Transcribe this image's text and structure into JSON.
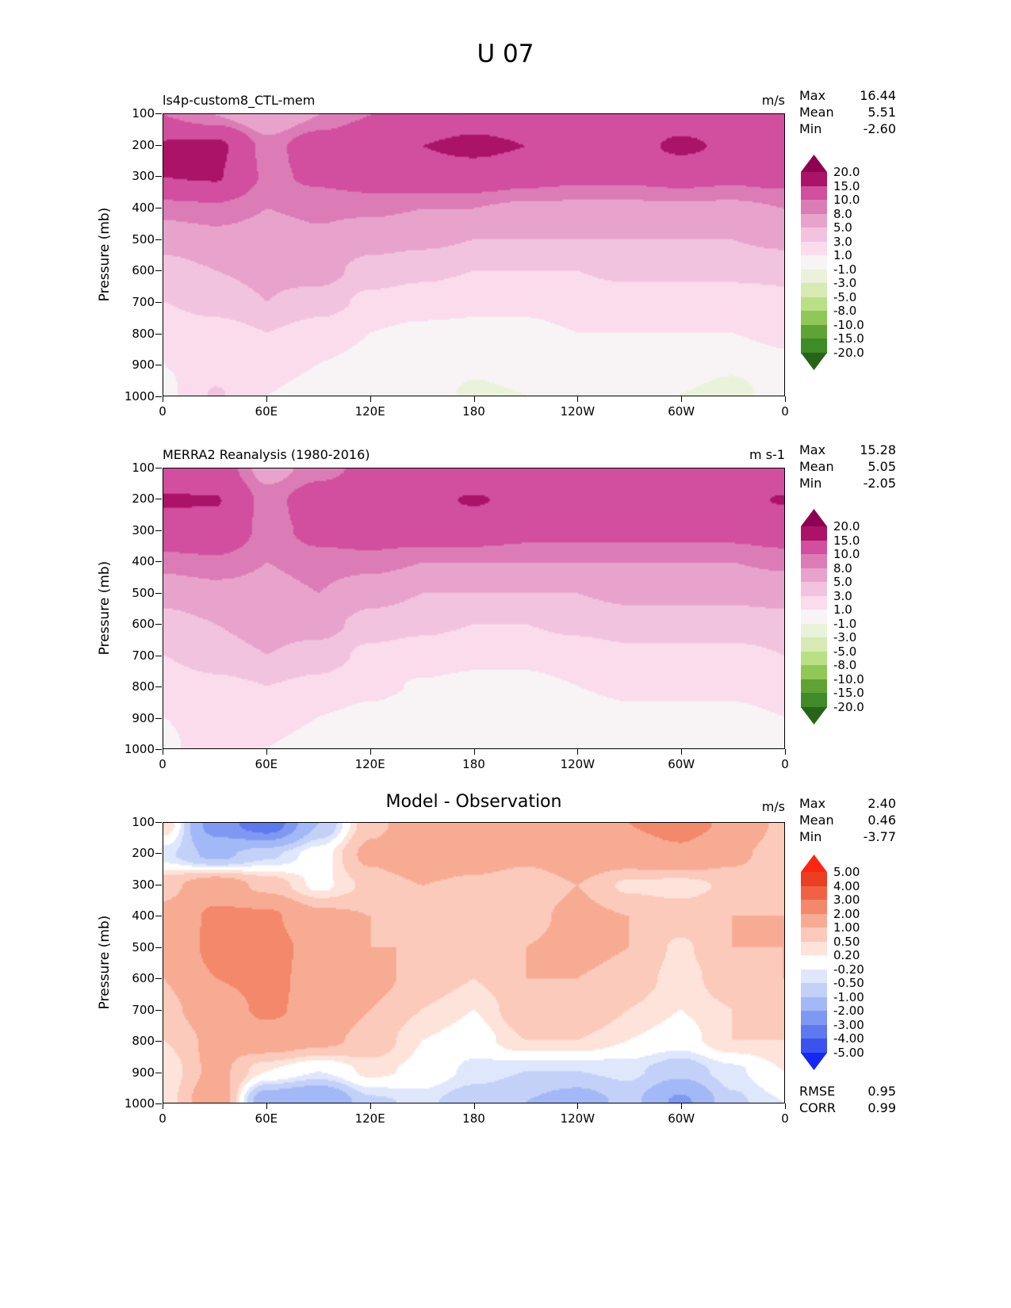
{
  "figure": {
    "title": "U 07"
  },
  "axes": {
    "ylabel": "Pressure (mb)",
    "yticks": [
      "100",
      "200",
      "300",
      "400",
      "500",
      "600",
      "700",
      "800",
      "900",
      "1000"
    ],
    "xticks": [
      "0",
      "60E",
      "120E",
      "180",
      "120W",
      "60W",
      "0"
    ]
  },
  "panels": [
    {
      "title": "ls4p-custom8_CTL-mem",
      "units": "m/s",
      "stats": [
        {
          "label": "Max",
          "value": "16.44"
        },
        {
          "label": "Mean",
          "value": "5.51"
        },
        {
          "label": "Min",
          "value": "-2.60"
        }
      ],
      "cb_labels": [
        "20.0",
        "15.0",
        "10.0",
        "8.0",
        "5.0",
        "3.0",
        "1.0",
        "-1.0",
        "-3.0",
        "-5.0",
        "-8.0",
        "-10.0",
        "-15.0",
        "-20.0"
      ]
    },
    {
      "title": "MERRA2 Reanalysis (1980-2016)",
      "units": "m s-1",
      "stats": [
        {
          "label": "Max",
          "value": "15.28"
        },
        {
          "label": "Mean",
          "value": "5.05"
        },
        {
          "label": "Min",
          "value": "-2.05"
        }
      ],
      "cb_labels": [
        "20.0",
        "15.0",
        "10.0",
        "8.0",
        "5.0",
        "3.0",
        "1.0",
        "-1.0",
        "-3.0",
        "-5.0",
        "-8.0",
        "-10.0",
        "-15.0",
        "-20.0"
      ]
    },
    {
      "title": "Model - Observation",
      "units": "m/s",
      "stats": [
        {
          "label": "Max",
          "value": "2.40"
        },
        {
          "label": "Mean",
          "value": "0.46"
        },
        {
          "label": "Min",
          "value": "-3.77"
        }
      ],
      "cb_labels": [
        "5.00",
        "4.00",
        "3.00",
        "2.00",
        "1.00",
        "0.50",
        "0.20",
        "-0.20",
        "-0.50",
        "-1.00",
        "-2.00",
        "-3.00",
        "-4.00",
        "-5.00"
      ],
      "extra": [
        {
          "label": "RMSE",
          "value": "0.95"
        },
        {
          "label": "CORR",
          "value": "0.99"
        }
      ]
    }
  ],
  "chart_data": [
    {
      "type": "heatmap",
      "subtype": "filled-contour",
      "name": "ls4p-custom8_CTL-mem zonal wind",
      "units": "m/s",
      "xlabel_ticks": [
        "0",
        "60E",
        "120E",
        "180",
        "120W",
        "60W",
        "0"
      ],
      "ylabel": "Pressure (mb)",
      "lon_deg": [
        0,
        30,
        60,
        90,
        120,
        150,
        180,
        210,
        240,
        270,
        300,
        330,
        360
      ],
      "pressure_mb": [
        100,
        200,
        300,
        400,
        500,
        600,
        700,
        800,
        900,
        1000
      ],
      "levels": [
        -20,
        -15,
        -10,
        -8,
        -5,
        -3,
        -1,
        1,
        3,
        5,
        8,
        10,
        15,
        20
      ],
      "colors": [
        "#276419",
        "#3e8b27",
        "#5fa334",
        "#90c857",
        "#b8e186",
        "#d7eab3",
        "#eaf2d9",
        "#f8f4f6",
        "#fadced",
        "#f2c3de",
        "#e8a3cc",
        "#dc7cb6",
        "#d14f9e",
        "#ab1368",
        "#8e0152"
      ],
      "stats": {
        "max": 16.44,
        "mean": 5.51,
        "min": -2.6
      },
      "values": [
        [
          10,
          8,
          5.5,
          8,
          10,
          11,
          12,
          12,
          11,
          10,
          12,
          12,
          10
        ],
        [
          15.5,
          16,
          9,
          12,
          14,
          15,
          16.4,
          15,
          13,
          13,
          16,
          14,
          12
        ],
        [
          15,
          15.3,
          9.5,
          10.5,
          11.5,
          12,
          12,
          11,
          10.5,
          10.5,
          11,
          10.5,
          11
        ],
        [
          9,
          9.5,
          8,
          8.5,
          8.5,
          8,
          8,
          7.5,
          7.5,
          7.5,
          7.5,
          7.5,
          8
        ],
        [
          6,
          7,
          6.5,
          7.5,
          6,
          5.5,
          5,
          5,
          5,
          5,
          5,
          5,
          5.5
        ],
        [
          4,
          5,
          5.5,
          6,
          4,
          3.5,
          3,
          3,
          3,
          3.5,
          3.5,
          3.5,
          3.5
        ],
        [
          3,
          4,
          5,
          4,
          2.5,
          2,
          1.5,
          1.5,
          2,
          2,
          2,
          2,
          2.5
        ],
        [
          1.5,
          2,
          3,
          2,
          1,
          0.5,
          0.5,
          0.5,
          1,
          1,
          1,
          1,
          1.5
        ],
        [
          1,
          2,
          1.5,
          1,
          0.5,
          0,
          -0.8,
          -0.5,
          0,
          0.5,
          0.5,
          -0.5,
          0.5
        ],
        [
          0.5,
          3.2,
          1,
          0.5,
          0,
          -0.5,
          -1.2,
          -1,
          0,
          0.5,
          -1,
          -2,
          0.5
        ]
      ]
    },
    {
      "type": "heatmap",
      "subtype": "filled-contour",
      "name": "MERRA2 Reanalysis (1980-2016) zonal wind",
      "units": "m s-1",
      "xlabel_ticks": [
        "0",
        "60E",
        "120E",
        "180",
        "120W",
        "60W",
        "0"
      ],
      "ylabel": "Pressure (mb)",
      "lon_deg": [
        0,
        30,
        60,
        90,
        120,
        150,
        180,
        210,
        240,
        270,
        300,
        330,
        360
      ],
      "pressure_mb": [
        100,
        200,
        300,
        400,
        500,
        600,
        700,
        800,
        900,
        1000
      ],
      "levels": [
        -20,
        -15,
        -10,
        -8,
        -5,
        -3,
        -1,
        1,
        3,
        5,
        8,
        10,
        15,
        20
      ],
      "colors": [
        "#276419",
        "#3e8b27",
        "#5fa334",
        "#90c857",
        "#b8e186",
        "#d7eab3",
        "#eaf2d9",
        "#f8f4f6",
        "#fadced",
        "#f2c3de",
        "#e8a3cc",
        "#dc7cb6",
        "#d14f9e",
        "#ab1368",
        "#8e0152"
      ],
      "stats": {
        "max": 15.28,
        "mean": 5.05,
        "min": -2.05
      },
      "values": [
        [
          13,
          12,
          7,
          9,
          11,
          12,
          12,
          11,
          10,
          10,
          11,
          12,
          13
        ],
        [
          15.3,
          15.2,
          9,
          12,
          14,
          14,
          15.3,
          14,
          13,
          13,
          13,
          14,
          15.2
        ],
        [
          13,
          13.5,
          9,
          11,
          12,
          12,
          12,
          11,
          11,
          11,
          11,
          11,
          12
        ],
        [
          9,
          9.5,
          8,
          9,
          9,
          8,
          8,
          8,
          8,
          8,
          8,
          8,
          8.5
        ],
        [
          6,
          7,
          7,
          8,
          6,
          5,
          5,
          5,
          5,
          5.5,
          5.5,
          5.5,
          6
        ],
        [
          4,
          5,
          6,
          6,
          4,
          3.5,
          3,
          3,
          3.5,
          4,
          4,
          4,
          4
        ],
        [
          3,
          4,
          5,
          4,
          2.5,
          2,
          1.5,
          1.5,
          2,
          2.5,
          2.5,
          2.5,
          3
        ],
        [
          2,
          2.5,
          3,
          2.5,
          1.5,
          0.8,
          0.5,
          0.5,
          1,
          1.5,
          1.5,
          1.5,
          2
        ],
        [
          1,
          2,
          1.5,
          1,
          0.5,
          0,
          -0.5,
          -0.5,
          0,
          0.5,
          0.5,
          0.5,
          1
        ],
        [
          0.5,
          2.5,
          1,
          0.5,
          0,
          -0.5,
          -1,
          -1,
          -0.2,
          0.2,
          0,
          -0.5,
          0.5
        ]
      ]
    },
    {
      "type": "heatmap",
      "subtype": "filled-contour",
      "name": "Model - Observation difference",
      "units": "m/s",
      "xlabel_ticks": [
        "0",
        "60E",
        "120E",
        "180",
        "120W",
        "60W",
        "0"
      ],
      "ylabel": "Pressure (mb)",
      "lon_deg": [
        0,
        30,
        60,
        90,
        120,
        150,
        180,
        210,
        240,
        270,
        300,
        330,
        360
      ],
      "pressure_mb": [
        100,
        200,
        300,
        400,
        500,
        600,
        700,
        800,
        900,
        1000
      ],
      "levels": [
        -5,
        -4,
        -3,
        -2,
        -1,
        -0.5,
        -0.2,
        0.2,
        0.5,
        1,
        2,
        3,
        4,
        5
      ],
      "colors": [
        "#1526f5",
        "#3b52ef",
        "#5e78f0",
        "#7f99f3",
        "#a3b8f6",
        "#c3d1f9",
        "#dfe7fc",
        "#ffffff",
        "#fde3da",
        "#fbcaba",
        "#f8ab93",
        "#f4886a",
        "#ef6344",
        "#ea3f22",
        "#fb2711"
      ],
      "stats": {
        "max": 2.4,
        "mean": 0.46,
        "min": -3.77,
        "rmse": 0.95,
        "corr": 0.99
      },
      "values": [
        [
          0.5,
          -2.5,
          -3.7,
          -1.0,
          0.8,
          1.5,
          1.8,
          1.5,
          1.8,
          2.0,
          2.4,
          1.8,
          0.8
        ],
        [
          -0.4,
          -1.2,
          -0.6,
          0.0,
          1.2,
          1.8,
          1.5,
          1.2,
          1.5,
          1.5,
          1.8,
          1.2,
          0.6
        ],
        [
          0.8,
          1.5,
          0.8,
          0.1,
          0.6,
          1.0,
          0.8,
          0.6,
          1.0,
          0.4,
          0.3,
          0.6,
          0.6
        ],
        [
          1.2,
          2.2,
          2.2,
          1.2,
          1.0,
          0.8,
          0.8,
          0.8,
          1.2,
          1.0,
          0.8,
          1.0,
          1.0
        ],
        [
          1.0,
          2.3,
          2.4,
          1.6,
          1.0,
          1.0,
          0.8,
          1.0,
          1.2,
          1.0,
          0.4,
          1.0,
          1.0
        ],
        [
          1.0,
          2.0,
          2.3,
          1.6,
          1.2,
          0.8,
          0.5,
          1.0,
          1.0,
          0.8,
          0.3,
          0.8,
          1.0
        ],
        [
          0.8,
          1.5,
          2.2,
          1.6,
          1.0,
          0.5,
          0.2,
          0.8,
          1.0,
          0.5,
          0.2,
          0.5,
          0.8
        ],
        [
          0.5,
          1.2,
          1.5,
          1.2,
          0.8,
          0.2,
          0.0,
          0.5,
          0.5,
          0.2,
          0.0,
          0.5,
          0.5
        ],
        [
          0.2,
          1.2,
          0.2,
          -0.2,
          0.3,
          0.1,
          -0.3,
          -0.5,
          -0.5,
          -0.4,
          -0.8,
          -0.3,
          0.2
        ],
        [
          0.3,
          1.6,
          -1.6,
          -2.0,
          -0.6,
          -0.4,
          -0.8,
          -1.0,
          -1.4,
          -0.8,
          -2.2,
          -0.6,
          -0.2
        ]
      ]
    }
  ]
}
